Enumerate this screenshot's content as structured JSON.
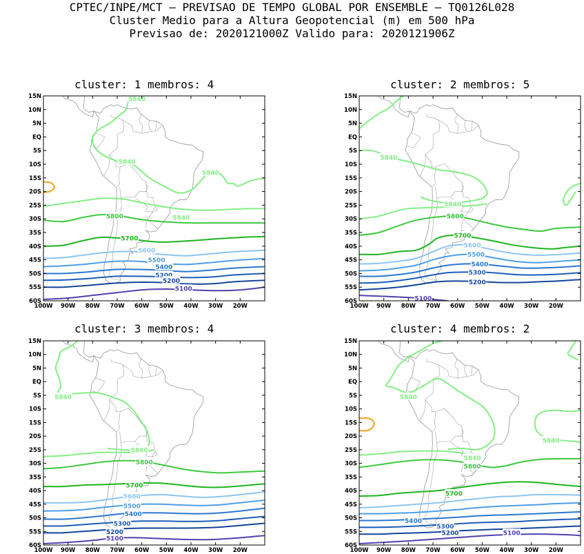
{
  "header": {
    "line1": "CPTEC/INPE/MCT – PREVISAO DE TEMPO GLOBAL POR ENSEMBLE – TQ0126L028",
    "line2": "Cluster Medio para a Altura Geopotencial (m) em 500 hPa",
    "line3": "Previsao de: 2020121000Z   Valido para: 2020121906Z"
  },
  "axes": {
    "lat_ticks": [
      "15N",
      "10N",
      "5N",
      "EQ",
      "5S",
      "10S",
      "15S",
      "20S",
      "25S",
      "30S",
      "35S",
      "40S",
      "45S",
      "50S",
      "55S",
      "60S"
    ],
    "lon_ticks": [
      "100W",
      "90W",
      "80W",
      "70W",
      "60W",
      "50W",
      "40W",
      "30W",
      "20W"
    ]
  },
  "colors": {
    "5840": "#84ee84",
    "5800": "#3cc83c",
    "5700": "#1eb41e",
    "5600": "#8cc4f4",
    "5500": "#4c9ee8",
    "5400": "#2878d0",
    "5300": "#1c5cb8",
    "5200": "#14449c",
    "5100": "#5040b0",
    "high": "#f0a020",
    "coast": "#a0a0a0"
  },
  "panels": [
    {
      "title": "cluster: 1   membros: 4",
      "labels": [
        {
          "text": "5840",
          "lon": -62.0,
          "lat": 14.0,
          "level": "5840"
        },
        {
          "text": "5840",
          "lon": -66.0,
          "lat": -9.0,
          "level": "5840"
        },
        {
          "text": "5840",
          "lon": -32.0,
          "lat": -13.0,
          "level": "5840"
        },
        {
          "text": "5840",
          "lon": -44.0,
          "lat": -29.5,
          "level": "5840"
        },
        {
          "text": "5800",
          "lon": -71.0,
          "lat": -29.0,
          "level": "5800"
        },
        {
          "text": "5700",
          "lon": -65.0,
          "lat": -37.0,
          "level": "5700"
        },
        {
          "text": "5600",
          "lon": -58.0,
          "lat": -41.5,
          "level": "5600"
        },
        {
          "text": "5500",
          "lon": -54.0,
          "lat": -45.0,
          "level": "5500"
        },
        {
          "text": "5400",
          "lon": -51.0,
          "lat": -47.5,
          "level": "5400"
        },
        {
          "text": "5300",
          "lon": -51.0,
          "lat": -50.5,
          "level": "5300"
        },
        {
          "text": "5200",
          "lon": -48.0,
          "lat": -52.5,
          "level": "5200"
        },
        {
          "text": "5100",
          "lon": -43.0,
          "lat": -55.5,
          "level": "5100"
        }
      ]
    },
    {
      "title": "cluster: 2   membros: 5",
      "labels": [
        {
          "text": "5840",
          "lon": -88.0,
          "lat": -7.5,
          "level": "5840"
        },
        {
          "text": "5840",
          "lon": -62.0,
          "lat": -24.5,
          "level": "5840"
        },
        {
          "text": "5800",
          "lon": -61.0,
          "lat": -29.0,
          "level": "5800"
        },
        {
          "text": "5700",
          "lon": -58.0,
          "lat": -36.0,
          "level": "5700"
        },
        {
          "text": "5600",
          "lon": -54.0,
          "lat": -39.5,
          "level": "5600"
        },
        {
          "text": "5500",
          "lon": -52.5,
          "lat": -43.0,
          "level": "5500"
        },
        {
          "text": "5400",
          "lon": -51.0,
          "lat": -46.5,
          "level": "5400"
        },
        {
          "text": "5300",
          "lon": -52.0,
          "lat": -49.5,
          "level": "5300"
        },
        {
          "text": "5200",
          "lon": -52.0,
          "lat": -53.0,
          "level": "5200"
        },
        {
          "text": "5100",
          "lon": -74.0,
          "lat": -59.0,
          "level": "5100"
        }
      ]
    },
    {
      "title": "cluster: 3   membros: 4",
      "labels": [
        {
          "text": "5840",
          "lon": -92.0,
          "lat": -5.5,
          "level": "5840"
        },
        {
          "text": "5840",
          "lon": -61.0,
          "lat": -25.0,
          "level": "5840"
        },
        {
          "text": "5800",
          "lon": -59.0,
          "lat": -29.5,
          "level": "5800"
        },
        {
          "text": "5700",
          "lon": -63.0,
          "lat": -38.0,
          "level": "5700"
        },
        {
          "text": "5600",
          "lon": -64.0,
          "lat": -42.0,
          "level": "5600"
        },
        {
          "text": "5500",
          "lon": -64.0,
          "lat": -45.5,
          "level": "5500"
        },
        {
          "text": "5400",
          "lon": -63.5,
          "lat": -48.5,
          "level": "5400"
        },
        {
          "text": "5300",
          "lon": -68.0,
          "lat": -52.0,
          "level": "5300"
        },
        {
          "text": "5200",
          "lon": -71.0,
          "lat": -55.0,
          "level": "5200"
        },
        {
          "text": "5100",
          "lon": -71.0,
          "lat": -57.5,
          "level": "5100"
        }
      ]
    },
    {
      "title": "cluster: 4   membros: 2",
      "labels": [
        {
          "text": "5840",
          "lon": -80.0,
          "lat": -5.5,
          "level": "5840"
        },
        {
          "text": "5840",
          "lon": -22.0,
          "lat": -21.5,
          "level": "5840"
        },
        {
          "text": "5840",
          "lon": -54.0,
          "lat": -28.0,
          "level": "5840"
        },
        {
          "text": "5800",
          "lon": -54.0,
          "lat": -31.0,
          "level": "5800"
        },
        {
          "text": "5700",
          "lon": -61.5,
          "lat": -41.0,
          "level": "5700"
        },
        {
          "text": "5400",
          "lon": -78.0,
          "lat": -51.0,
          "level": "5400"
        },
        {
          "text": "5300",
          "lon": -65.0,
          "lat": -53.0,
          "level": "5300"
        },
        {
          "text": "5200",
          "lon": -63.0,
          "lat": -55.5,
          "level": "5200"
        },
        {
          "text": "5100",
          "lon": -38.0,
          "lat": -55.5,
          "level": "5100"
        }
      ]
    }
  ]
}
